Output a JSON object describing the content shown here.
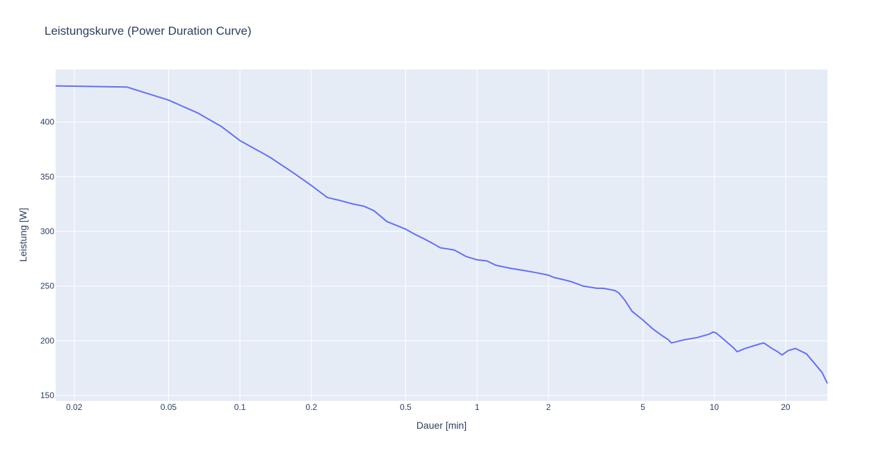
{
  "chart_data": {
    "type": "line",
    "title": "Leistungskurve (Power Duration Curve)",
    "xlabel": "Dauer [min]",
    "ylabel": "Leistung [W]",
    "x_scale": "log",
    "xlim": [
      0.0167,
      30
    ],
    "ylim": [
      145,
      448
    ],
    "x_ticks": [
      {
        "value": 0.02,
        "label": "0.02"
      },
      {
        "value": 0.05,
        "label": "0.05"
      },
      {
        "value": 0.1,
        "label": "0.1"
      },
      {
        "value": 0.2,
        "label": "0.2"
      },
      {
        "value": 0.5,
        "label": "0.5"
      },
      {
        "value": 1,
        "label": "1"
      },
      {
        "value": 2,
        "label": "2"
      },
      {
        "value": 5,
        "label": "5"
      },
      {
        "value": 10,
        "label": "10"
      },
      {
        "value": 20,
        "label": "20"
      }
    ],
    "y_ticks": [
      {
        "value": 150,
        "label": "150"
      },
      {
        "value": 200,
        "label": "200"
      },
      {
        "value": 250,
        "label": "250"
      },
      {
        "value": 300,
        "label": "300"
      },
      {
        "value": 350,
        "label": "350"
      },
      {
        "value": 400,
        "label": "400"
      }
    ],
    "grid": true,
    "colors": {
      "plot_bg": "#e5ecf6",
      "grid": "#ffffff",
      "line": "#636efa",
      "text": "#2a3f5f"
    },
    "series": [
      {
        "x": [
          0.0167,
          0.0333,
          0.05,
          0.0667,
          0.0833,
          0.1,
          0.1333,
          0.1667,
          0.2,
          0.2333,
          0.2667,
          0.3,
          0.3333,
          0.3667,
          0.4167,
          0.5,
          0.55,
          0.6,
          0.65,
          0.7,
          0.75,
          0.8,
          0.85,
          0.9,
          1.0,
          1.1,
          1.2,
          1.4,
          1.6,
          1.8,
          2.0,
          2.1,
          2.3,
          2.5,
          2.8,
          3.0,
          3.2,
          3.4,
          3.6,
          3.8,
          3.95,
          4.2,
          4.5,
          5.0,
          5.5,
          6.0,
          6.4,
          6.6,
          7.5,
          8.5,
          9.5,
          9.9,
          10.2,
          10.6,
          12.0,
          12.5,
          13.5,
          15.5,
          16.2,
          17.5,
          18.5,
          19.3,
          20.5,
          22.0,
          24.5,
          28.5,
          30.0
        ],
        "y": [
          433,
          432,
          420,
          408,
          396,
          383,
          368,
          354,
          342,
          331,
          328,
          325,
          323,
          319,
          309,
          302,
          297,
          293,
          289,
          285,
          284,
          283,
          280,
          277,
          274,
          273,
          269,
          266,
          264,
          262,
          260,
          258,
          256,
          254,
          250,
          249,
          248,
          248,
          247,
          246,
          244,
          237,
          227,
          219,
          211,
          205,
          201,
          198,
          201,
          203,
          206,
          208,
          207,
          204,
          194,
          190,
          193,
          197,
          198,
          193,
          190,
          187,
          191,
          193,
          188,
          171,
          161
        ]
      }
    ]
  }
}
